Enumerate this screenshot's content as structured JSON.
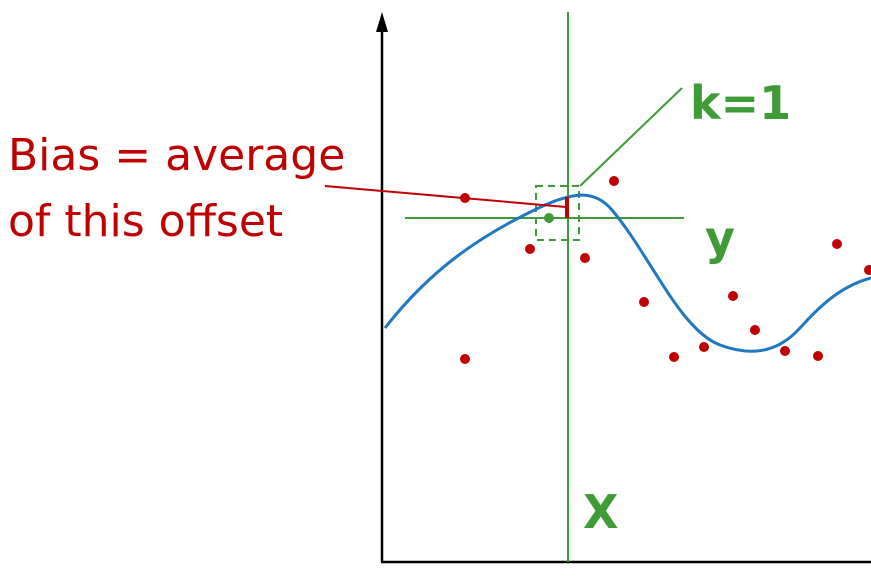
{
  "labels": {
    "bias_line1": "Bias = average",
    "bias_line2": "of this offset",
    "k_label": "k=1",
    "y_label": "y",
    "x_label": "X"
  },
  "colors": {
    "axis": "#000000",
    "curve": "#1f78c1",
    "points": "#c00000",
    "guides": "#3f9b35",
    "annotation": "#c00000",
    "label_green": "#3f9b35"
  },
  "icons": {
    "axis_arrow": "arrow-up-icon"
  }
}
